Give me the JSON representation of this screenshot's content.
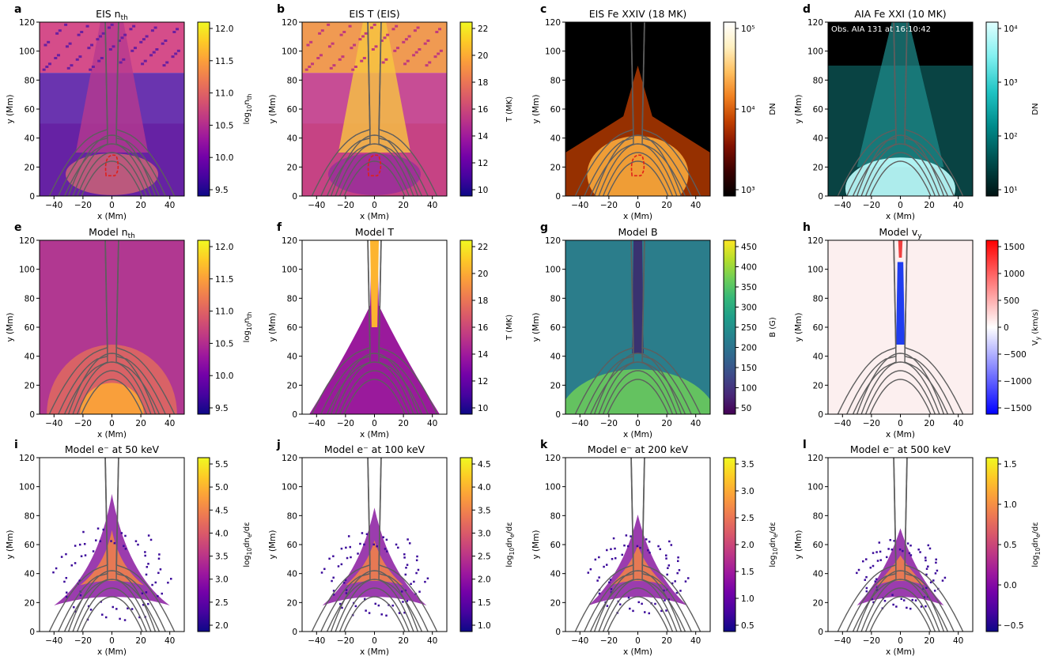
{
  "figure": {
    "x_axis": {
      "label": "x (Mm)",
      "range": [
        -50,
        50
      ],
      "ticks": [
        -40,
        -20,
        0,
        20,
        40
      ]
    },
    "y_axis": {
      "label": "y (Mm)",
      "range": [
        0,
        120
      ],
      "ticks": [
        0,
        20,
        40,
        60,
        80,
        100,
        120
      ]
    },
    "field_line_color": "#5e5e5e",
    "panels": [
      {
        "letter": "a",
        "title": "EIS n",
        "title_sub": "th",
        "colormap": "plasma",
        "background": "#d54d8a",
        "cb_label": "log",
        "cb_label_sub": "10",
        "cb_label_rest": "n",
        "cb_label_sub2": "th",
        "cb_ticks": [
          "9.5",
          "10.0",
          "10.5",
          "11.0",
          "11.5",
          "12.0"
        ],
        "kind": "obs_dens",
        "dashed_contour": true,
        "annotation": ""
      },
      {
        "letter": "b",
        "title": "EIS T (EIS)",
        "title_sub": "",
        "colormap": "plasma",
        "background": "#f09a52",
        "cb_label": "T (MK)",
        "cb_label_sub": "",
        "cb_label_rest": "",
        "cb_label_sub2": "",
        "cb_ticks": [
          "10",
          "12",
          "14",
          "16",
          "18",
          "20",
          "22"
        ],
        "kind": "obs_temp",
        "dashed_contour": true,
        "annotation": ""
      },
      {
        "letter": "c",
        "title": "EIS Fe XXIV (18 MK)",
        "title_sub": "",
        "colormap": "afmhot",
        "background": "#000000",
        "cb_label": "DN",
        "cb_label_sub": "",
        "cb_label_rest": "",
        "cb_label_sub2": "",
        "cb_ticks": [
          "10³",
          "10⁴",
          "10⁵"
        ],
        "kind": "obs_fe24",
        "dashed_contour": true,
        "annotation": ""
      },
      {
        "letter": "d",
        "title": "AIA Fe XXI (10 MK)",
        "title_sub": "",
        "colormap": "teal",
        "background": "#000000",
        "cb_label": "DN",
        "cb_label_sub": "",
        "cb_label_rest": "",
        "cb_label_sub2": "",
        "cb_ticks": [
          "10¹",
          "10²",
          "10³",
          "10⁴"
        ],
        "kind": "obs_aia",
        "dashed_contour": false,
        "annotation": "Obs. AIA 131 at 16:10:42"
      },
      {
        "letter": "e",
        "title": "Model n",
        "title_sub": "th",
        "colormap": "plasma",
        "background": "#b13891",
        "cb_label": "log",
        "cb_label_sub": "10",
        "cb_label_rest": "n",
        "cb_label_sub2": "th",
        "cb_ticks": [
          "9.5",
          "10.0",
          "10.5",
          "11.0",
          "11.5",
          "12.0"
        ],
        "kind": "model_dens",
        "dashed_contour": false,
        "annotation": ""
      },
      {
        "letter": "f",
        "title": "Model T",
        "title_sub": "",
        "colormap": "plasma",
        "background": "#ffffff",
        "cb_label": "T (MK)",
        "cb_label_sub": "",
        "cb_label_rest": "",
        "cb_label_sub2": "",
        "cb_ticks": [
          "10",
          "12",
          "14",
          "16",
          "18",
          "20",
          "22"
        ],
        "kind": "model_temp",
        "dashed_contour": false,
        "annotation": ""
      },
      {
        "letter": "g",
        "title": "Model B",
        "title_sub": "",
        "colormap": "viridis",
        "background": "#2b7d8b",
        "cb_label": "B (G)",
        "cb_label_sub": "",
        "cb_label_rest": "",
        "cb_label_sub2": "",
        "cb_ticks": [
          "50",
          "100",
          "150",
          "200",
          "250",
          "300",
          "350",
          "400",
          "450"
        ],
        "kind": "model_b",
        "dashed_contour": false,
        "annotation": ""
      },
      {
        "letter": "h",
        "title": "Model v",
        "title_sub": "y",
        "colormap": "bwr",
        "background": "#fcefef",
        "cb_label": "V",
        "cb_label_sub": "y",
        "cb_label_rest": " (km/s)",
        "cb_label_sub2": "",
        "cb_ticks": [
          "−1500",
          "−1000",
          "−500",
          "0",
          "500",
          "1000",
          "1500"
        ],
        "kind": "model_v",
        "dashed_contour": false,
        "annotation": ""
      },
      {
        "letter": "i",
        "title": "Model e⁻ at 50 keV",
        "title_sub": "",
        "colormap": "plasma",
        "background": "#ffffff",
        "cb_label": "log",
        "cb_label_sub": "10",
        "cb_label_rest": "dn",
        "cb_label_sub2": "e",
        "cb_label_tail": "/dε",
        "cb_ticks": [
          "2.0",
          "2.5",
          "3.0",
          "3.5",
          "4.0",
          "4.5",
          "5.0",
          "5.5"
        ],
        "kind": "elec",
        "scatter_spread": 1.0,
        "dashed_contour": false,
        "annotation": ""
      },
      {
        "letter": "j",
        "title": "Model e⁻ at 100 keV",
        "title_sub": "",
        "colormap": "plasma",
        "background": "#ffffff",
        "cb_label": "log",
        "cb_label_sub": "10",
        "cb_label_rest": "dn",
        "cb_label_sub2": "e",
        "cb_label_tail": "/dε",
        "cb_ticks": [
          "1.0",
          "1.5",
          "2.0",
          "2.5",
          "3.0",
          "3.5",
          "4.0",
          "4.5"
        ],
        "kind": "elec",
        "scatter_spread": 0.9,
        "dashed_contour": false,
        "annotation": ""
      },
      {
        "letter": "k",
        "title": "Model e⁻ at 200 keV",
        "title_sub": "",
        "colormap": "plasma",
        "background": "#ffffff",
        "cb_label": "log",
        "cb_label_sub": "10",
        "cb_label_rest": "dn",
        "cb_label_sub2": "e",
        "cb_label_tail": "/dε",
        "cb_ticks": [
          "0.5",
          "1.0",
          "1.5",
          "2.0",
          "2.5",
          "3.0",
          "3.5"
        ],
        "kind": "elec",
        "scatter_spread": 0.85,
        "dashed_contour": false,
        "annotation": ""
      },
      {
        "letter": "l",
        "title": "Model e⁻ at 500 keV",
        "title_sub": "",
        "colormap": "plasma",
        "background": "#ffffff",
        "cb_label": "log",
        "cb_label_sub": "10",
        "cb_label_rest": "dn",
        "cb_label_sub2": "e",
        "cb_label_tail": "/dε",
        "cb_ticks": [
          "−0.5",
          "0.0",
          "0.5",
          "1.0",
          "1.5"
        ],
        "kind": "elec",
        "scatter_spread": 0.75,
        "dashed_contour": false,
        "annotation": ""
      }
    ]
  },
  "chart_data": [
    {
      "type": "heatmap",
      "title": "EIS n_th",
      "xlabel": "x (Mm)",
      "ylabel": "y (Mm)",
      "xlim": [
        -50,
        50
      ],
      "ylim": [
        0,
        120
      ],
      "colorbar": {
        "label": "log10 n_th",
        "range": [
          9.5,
          12.0
        ]
      }
    },
    {
      "type": "heatmap",
      "title": "EIS T (EIS)",
      "xlabel": "x (Mm)",
      "ylabel": "y (Mm)",
      "xlim": [
        -50,
        50
      ],
      "ylim": [
        0,
        120
      ],
      "colorbar": {
        "label": "T (MK)",
        "range": [
          10,
          22
        ]
      }
    },
    {
      "type": "heatmap",
      "title": "EIS Fe XXIV (18 MK)",
      "xlabel": "x (Mm)",
      "ylabel": "y (Mm)",
      "xlim": [
        -50,
        50
      ],
      "ylim": [
        0,
        120
      ],
      "colorbar": {
        "label": "DN",
        "range": [
          1000,
          500000
        ],
        "scale": "log"
      }
    },
    {
      "type": "heatmap",
      "title": "AIA Fe XXI (10 MK)",
      "xlabel": "x (Mm)",
      "ylabel": "y (Mm)",
      "xlim": [
        -50,
        50
      ],
      "ylim": [
        0,
        120
      ],
      "colorbar": {
        "label": "DN",
        "range": [
          10,
          50000
        ],
        "scale": "log"
      },
      "annotation": "Obs. AIA 131 at 16:10:42"
    },
    {
      "type": "heatmap",
      "title": "Model n_th",
      "xlabel": "x (Mm)",
      "ylabel": "y (Mm)",
      "xlim": [
        -50,
        50
      ],
      "ylim": [
        0,
        120
      ],
      "colorbar": {
        "label": "log10 n_th",
        "range": [
          9.5,
          12.0
        ]
      }
    },
    {
      "type": "heatmap",
      "title": "Model T",
      "xlabel": "x (Mm)",
      "ylabel": "y (Mm)",
      "xlim": [
        -50,
        50
      ],
      "ylim": [
        0,
        120
      ],
      "colorbar": {
        "label": "T (MK)",
        "range": [
          10,
          22
        ]
      }
    },
    {
      "type": "heatmap",
      "title": "Model B",
      "xlabel": "x (Mm)",
      "ylabel": "y (Mm)",
      "xlim": [
        -50,
        50
      ],
      "ylim": [
        0,
        120
      ],
      "colorbar": {
        "label": "B (G)",
        "range": [
          30,
          460
        ]
      }
    },
    {
      "type": "heatmap",
      "title": "Model v_y",
      "xlabel": "x (Mm)",
      "ylabel": "y (Mm)",
      "xlim": [
        -50,
        50
      ],
      "ylim": [
        0,
        120
      ],
      "colorbar": {
        "label": "V_y (km/s)",
        "range": [
          -1650,
          1650
        ]
      }
    },
    {
      "type": "heatmap",
      "title": "Model e- at 50 keV",
      "xlabel": "x (Mm)",
      "ylabel": "y (Mm)",
      "xlim": [
        -50,
        50
      ],
      "ylim": [
        0,
        120
      ],
      "colorbar": {
        "label": "log10 dn_e/dε",
        "range": [
          1.7,
          5.55
        ]
      }
    },
    {
      "type": "heatmap",
      "title": "Model e- at 100 keV",
      "xlabel": "x (Mm)",
      "ylabel": "y (Mm)",
      "xlim": [
        -50,
        50
      ],
      "ylim": [
        0,
        120
      ],
      "colorbar": {
        "label": "log10 dn_e/dε",
        "range": [
          0.8,
          4.85
        ]
      }
    },
    {
      "type": "heatmap",
      "title": "Model e- at 200 keV",
      "xlabel": "x (Mm)",
      "ylabel": "y (Mm)",
      "xlim": [
        -50,
        50
      ],
      "ylim": [
        0,
        120
      ],
      "colorbar": {
        "label": "log10 dn_e/dε",
        "range": [
          0.35,
          3.95
        ]
      }
    },
    {
      "type": "heatmap",
      "title": "Model e- at 500 keV",
      "xlabel": "x (Mm)",
      "ylabel": "y (Mm)",
      "xlim": [
        -50,
        50
      ],
      "ylim": [
        0,
        120
      ],
      "colorbar": {
        "label": "log10 dn_e/dε",
        "range": [
          -0.65,
          1.95
        ]
      }
    }
  ]
}
